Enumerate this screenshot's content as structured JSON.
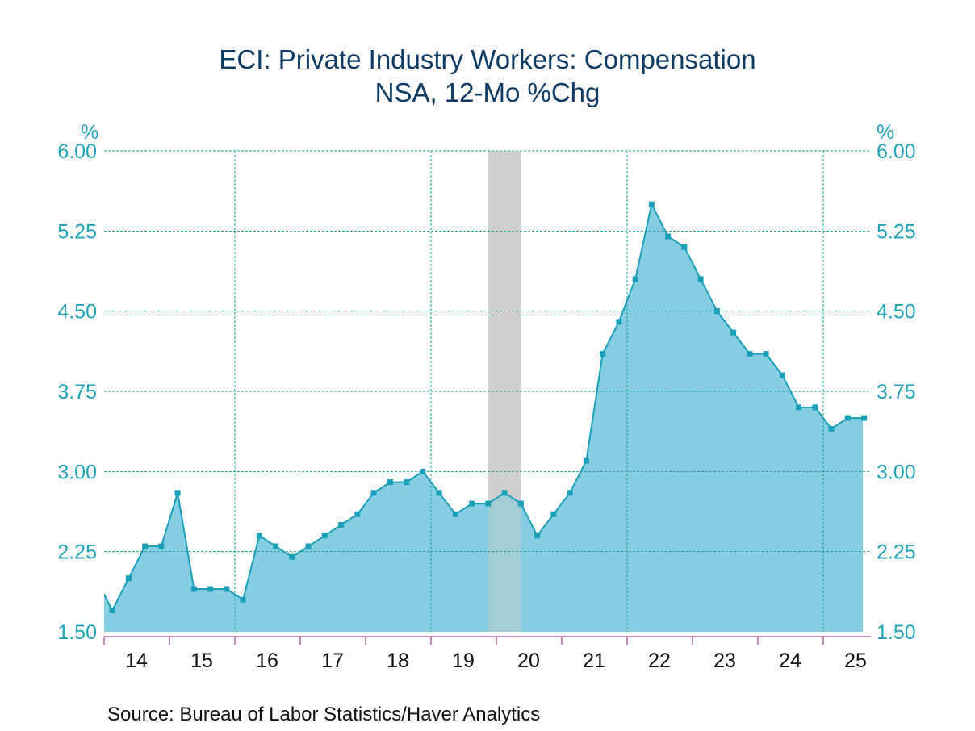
{
  "chart_data": {
    "type": "area",
    "title": "ECI: Private Industry Workers: Compensation",
    "subtitle": "NSA, 12-Mo %Chg",
    "ylabel_left": "%",
    "ylabel_right": "%",
    "ylim": [
      1.5,
      6.0
    ],
    "yticks": [
      "1.50",
      "2.25",
      "3.00",
      "3.75",
      "4.50",
      "5.25",
      "6.00"
    ],
    "xticks": [
      "14",
      "15",
      "16",
      "17",
      "18",
      "19",
      "20",
      "21",
      "22",
      "23",
      "24",
      "25"
    ],
    "x_start": "2013Q4",
    "values": [
      2.0,
      1.7,
      2.0,
      2.3,
      2.3,
      2.8,
      1.9,
      1.9,
      1.9,
      1.8,
      2.4,
      2.3,
      2.2,
      2.3,
      2.4,
      2.5,
      2.6,
      2.8,
      2.9,
      2.9,
      3.0,
      2.8,
      2.6,
      2.7,
      2.7,
      2.8,
      2.7,
      2.4,
      2.6,
      2.8,
      3.1,
      4.1,
      4.4,
      4.8,
      5.5,
      5.2,
      5.1,
      4.8,
      4.5,
      4.3,
      4.1,
      4.1,
      3.9,
      3.6,
      3.6,
      3.4,
      3.5,
      3.5
    ],
    "recession": [
      2019.875,
      2020.375
    ],
    "grid": true,
    "colors": {
      "fill": "#7ecbe0",
      "line": "#1a9fb8",
      "grid": "#1aa08c",
      "recession": "#cfcfcf",
      "axis": "#8a1a7a"
    }
  },
  "source": "Source:  Bureau of Labor Statistics/Haver Analytics"
}
